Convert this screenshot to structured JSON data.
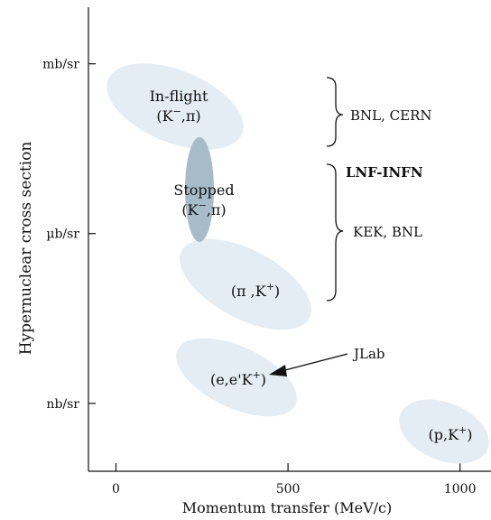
{
  "chart_data": {
    "type": "scatter",
    "xlabel": "Momentum transfer (MeV/c)",
    "ylabel": "Hypernuclear cross section",
    "xlim": [
      -80,
      1090
    ],
    "x_ticks": [
      {
        "value": 0,
        "label": "0"
      },
      {
        "value": 500,
        "label": "500"
      },
      {
        "value": 1000,
        "label": "1000"
      }
    ],
    "y_ticks": [
      {
        "value": 0,
        "label": "mb/sr"
      },
      {
        "value": -3,
        "label": "µb/sr"
      },
      {
        "value": -6,
        "label": "nb/sr"
      }
    ],
    "ylim": [
      -7.2,
      1.0
    ],
    "grid": false,
    "regions": [
      {
        "name": "in-flight",
        "line1": "In-flight",
        "reaction": {
          "a": "(K",
          "sup": "−",
          "b": ",π)"
        },
        "x_center": 240,
        "y_center": -0.7,
        "color": "#e3edf3"
      },
      {
        "name": "stopped",
        "line1": "Stopped",
        "reaction": {
          "a": "(K",
          "sup": "−",
          "b": ",π)"
        },
        "x_center": 235,
        "y_center": -2.1,
        "color": "#a6bcc8"
      },
      {
        "name": "pi-k",
        "line1": "",
        "reaction": {
          "a": "(π ,K",
          "sup": "+",
          "b": ")"
        },
        "x_center": 370,
        "y_center": -3.7,
        "color": "#e3edf3"
      },
      {
        "name": "electro",
        "line1": "",
        "reaction": {
          "a": "(e,e'K",
          "sup": "+",
          "b": ")"
        },
        "x_center": 350,
        "y_center": -5.2,
        "color": "#e3edf3"
      },
      {
        "name": "p-k",
        "line1": "",
        "reaction": {
          "a": "(p,K",
          "sup": "+",
          "b": ")"
        },
        "x_center": 950,
        "y_center": -6.5,
        "color": "#e3edf3"
      }
    ],
    "facility_labels": [
      {
        "name": "bnl-cern",
        "text": "BNL, CERN",
        "bold": false
      },
      {
        "name": "lnf-infn",
        "text": "LNF-INFN",
        "bold": true
      },
      {
        "name": "kek-bnl",
        "text": "KEK, BNL",
        "bold": false
      },
      {
        "name": "jlab",
        "text": "JLab",
        "bold": false
      }
    ]
  }
}
